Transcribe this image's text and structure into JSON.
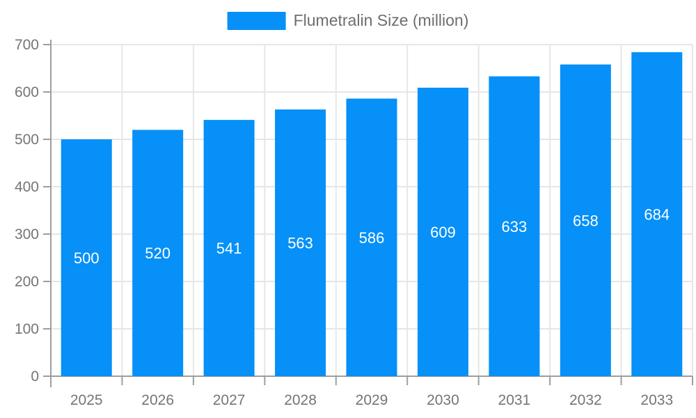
{
  "legend": {
    "label": "Flumetralin Size (million)"
  },
  "colors": {
    "bar": "#0690F8",
    "grid": "#E6E6E6",
    "axis": "#9E9E9E",
    "tick_text": "#757575",
    "value_label": "#FFFFFF",
    "background": "#FFFFFF"
  },
  "chart_data": {
    "type": "bar",
    "title": "",
    "series_name": "Flumetralin Size (million)",
    "categories": [
      "2025",
      "2026",
      "2027",
      "2028",
      "2029",
      "2030",
      "2031",
      "2032",
      "2033"
    ],
    "values": [
      500,
      520,
      541,
      563,
      586,
      609,
      633,
      658,
      684
    ],
    "ylim": [
      0,
      700
    ],
    "ytick_step": 100,
    "ytick_labels": [
      "0",
      "100",
      "200",
      "300",
      "400",
      "500",
      "600",
      "700"
    ],
    "grid": true,
    "legend_position": "top-center",
    "value_labels": "inside-center"
  }
}
